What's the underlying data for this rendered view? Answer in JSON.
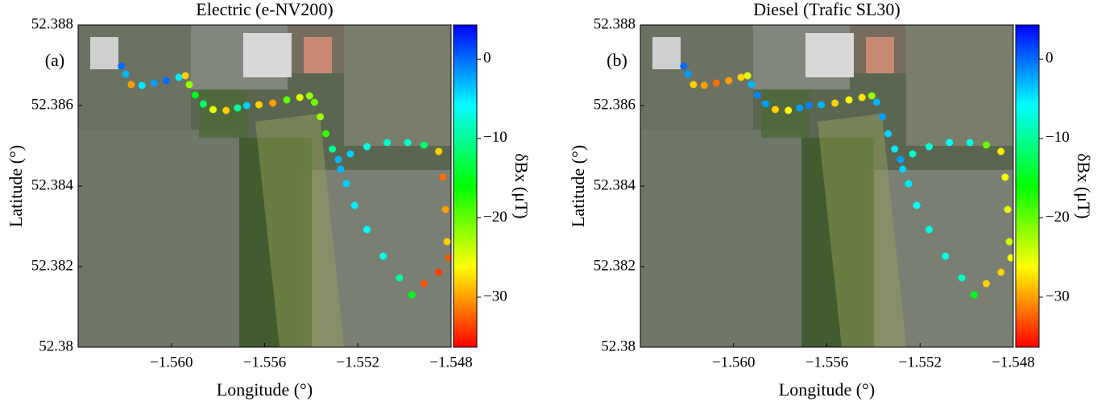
{
  "chart_data": [
    {
      "type": "scatter",
      "title": "Electric (e-NV200)",
      "panel_label": "(a)",
      "xlabel": "Longitude (°)",
      "ylabel": "Latitude (°)",
      "colorbar_label": "δBx (μT)",
      "x": [
        -1.56214,
        -1.56196,
        -1.56172,
        -1.56126,
        -1.56074,
        -1.56021,
        -1.55968,
        -1.5594,
        -1.55923,
        -1.55898,
        -1.55863,
        -1.55821,
        -1.55765,
        -1.55716,
        -1.55677,
        -1.55624,
        -1.55565,
        -1.55505,
        -1.55449,
        -1.55407,
        -1.55386,
        -1.55361,
        -1.55337,
        -1.55309,
        -1.55284,
        -1.55232,
        -1.55161,
        -1.55074,
        -1.54986,
        -1.54916,
        -1.54853,
        -1.54835,
        -1.54824,
        -1.54817,
        -1.5481,
        -1.54853,
        -1.54916,
        -1.54968,
        -1.55021,
        -1.55091,
        -1.55161,
        -1.55214,
        -1.55249,
        -1.55274
      ],
      "y": [
        52.38698,
        52.38678,
        52.38652,
        52.3865,
        52.38656,
        52.38662,
        52.3867,
        52.38674,
        52.38652,
        52.38626,
        52.38604,
        52.3859,
        52.38588,
        52.38594,
        52.386,
        52.38602,
        52.38606,
        52.38614,
        52.3862,
        52.38624,
        52.38608,
        52.38572,
        52.3853,
        52.38492,
        52.38466,
        52.3848,
        52.38498,
        52.38508,
        52.38508,
        52.38502,
        52.38486,
        52.38422,
        52.38342,
        52.38262,
        52.38222,
        52.38186,
        52.38158,
        52.3813,
        52.38172,
        52.38226,
        52.38292,
        52.38352,
        52.38406,
        52.38442
      ],
      "values": [
        0,
        -3,
        -30,
        -5,
        -2,
        0,
        -5,
        -28,
        -22,
        -15,
        -12,
        -25,
        -28,
        -10,
        -4,
        -28,
        -30,
        -20,
        -25,
        -22,
        -20,
        -22,
        -18,
        -10,
        -3,
        -4,
        -7,
        -8,
        -8,
        -12,
        -28,
        -32,
        -30,
        -28,
        -33,
        -34,
        -33,
        -15,
        -10,
        -7,
        -6,
        -5,
        -4,
        -3
      ],
      "xlim": [
        -1.564,
        -1.548
      ],
      "ylim": [
        52.38,
        52.388
      ],
      "xticks": [
        {
          "value": -1.56,
          "label": "−1.560"
        },
        {
          "value": -1.556,
          "label": "−1.556"
        },
        {
          "value": -1.552,
          "label": "−1.552"
        },
        {
          "value": -1.548,
          "label": "−1.548"
        }
      ],
      "yticks": [
        52.38,
        52.382,
        52.384,
        52.386,
        52.388
      ],
      "clim": [
        -36.3,
        4.3
      ],
      "cticks": [
        {
          "value": -30,
          "label": "−30"
        },
        {
          "value": -20,
          "label": "−20"
        },
        {
          "value": -10,
          "label": "−10"
        },
        0
      ],
      "colormap": [
        "#ff0000",
        "#ffff00",
        "#00ff00",
        "#00ffff",
        "#0000ff"
      ]
    },
    {
      "type": "scatter",
      "title": "Diesel (Trafic SL30)",
      "panel_label": "(b)",
      "xlabel": "Longitude (°)",
      "ylabel": "Latitude (°)",
      "colorbar_label": "δBx (μT)",
      "x": [
        -1.56214,
        -1.56196,
        -1.56172,
        -1.56126,
        -1.56074,
        -1.56021,
        -1.55968,
        -1.5594,
        -1.55923,
        -1.55898,
        -1.55863,
        -1.55821,
        -1.55765,
        -1.55716,
        -1.55677,
        -1.55624,
        -1.55565,
        -1.55505,
        -1.55449,
        -1.55407,
        -1.55386,
        -1.55361,
        -1.55337,
        -1.55309,
        -1.55284,
        -1.55232,
        -1.55161,
        -1.55074,
        -1.54986,
        -1.54916,
        -1.54853,
        -1.54835,
        -1.54824,
        -1.54817,
        -1.5481,
        -1.54853,
        -1.54916,
        -1.54968,
        -1.55021,
        -1.55091,
        -1.55161,
        -1.55214,
        -1.55249,
        -1.55274
      ],
      "y": [
        52.38698,
        52.38678,
        52.38652,
        52.3865,
        52.38656,
        52.38662,
        52.3867,
        52.38674,
        52.38652,
        52.38626,
        52.38604,
        52.3859,
        52.38588,
        52.38594,
        52.386,
        52.38602,
        52.38606,
        52.38614,
        52.3862,
        52.38624,
        52.38608,
        52.38572,
        52.3853,
        52.38492,
        52.38466,
        52.3848,
        52.38498,
        52.38508,
        52.38508,
        52.38502,
        52.38486,
        52.38422,
        52.38342,
        52.38262,
        52.38222,
        52.38186,
        52.38158,
        52.3813,
        52.38172,
        52.38226,
        52.38292,
        52.38352,
        52.38406,
        52.38442
      ],
      "values": [
        0,
        -2,
        -28,
        -30,
        -32,
        -30,
        -28,
        -25,
        -3,
        -1,
        -2,
        -28,
        -26,
        -2,
        -1,
        -3,
        -28,
        -26,
        -27,
        -22,
        -3,
        -2,
        -4,
        -5,
        -2,
        -8,
        -7,
        -6,
        -7,
        -20,
        -27,
        -26,
        -25,
        -24,
        -26,
        -28,
        -28,
        -15,
        -8,
        -7,
        -7,
        -6,
        -5,
        -4
      ],
      "xlim": [
        -1.564,
        -1.548
      ],
      "ylim": [
        52.38,
        52.388
      ],
      "xticks": [
        {
          "value": -1.56,
          "label": "−1.560"
        },
        {
          "value": -1.556,
          "label": "−1.556"
        },
        {
          "value": -1.552,
          "label": "−1.552"
        },
        {
          "value": -1.548,
          "label": "−1.548"
        }
      ],
      "yticks": [
        52.38,
        52.382,
        52.384,
        52.386,
        52.388
      ],
      "clim": [
        -36.3,
        4.3
      ],
      "cticks": [
        {
          "value": -30,
          "label": "−30"
        },
        {
          "value": -20,
          "label": "−20"
        },
        {
          "value": -10,
          "label": "−10"
        },
        0
      ],
      "colormap": [
        "#ff0000",
        "#ffff00",
        "#00ff00",
        "#00ffff",
        "#0000ff"
      ]
    }
  ]
}
